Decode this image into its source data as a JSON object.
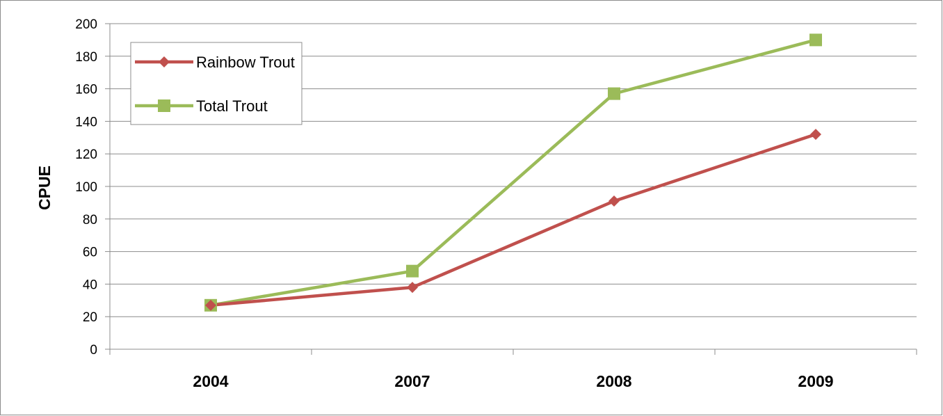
{
  "chart_data": {
    "type": "line",
    "categories": [
      "2004",
      "2007",
      "2008",
      "2009"
    ],
    "series": [
      {
        "name": "Rainbow Trout",
        "values": [
          27,
          38,
          91,
          132
        ],
        "color": "#c0504d",
        "marker": "diamond"
      },
      {
        "name": "Total Trout",
        "values": [
          27,
          48,
          157,
          190
        ],
        "color": "#9bbb59",
        "marker": "square"
      }
    ],
    "ylabel": "CPUE",
    "xlabel": "",
    "ylim": [
      0,
      200
    ],
    "yticks": [
      0,
      20,
      40,
      60,
      80,
      100,
      120,
      140,
      160,
      180,
      200
    ],
    "grid": true,
    "legend_position": "top-left"
  }
}
